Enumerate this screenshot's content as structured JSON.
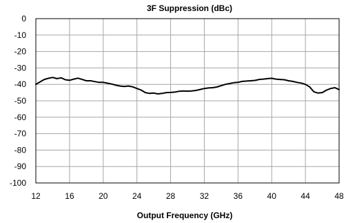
{
  "chart_data": {
    "type": "line",
    "title": "3F Suppression (dBc)",
    "xlabel": "Output Frequency  (GHz)",
    "ylabel": "",
    "xlim": [
      12,
      48
    ],
    "ylim": [
      -100,
      0
    ],
    "x_ticks": [
      "12",
      "16",
      "20",
      "24",
      "28",
      "32",
      "36",
      "40",
      "44",
      "48"
    ],
    "y_ticks": [
      "0",
      "-10",
      "-20",
      "-30",
      "-40",
      "-50",
      "-60",
      "-70",
      "-80",
      "-90",
      "-100"
    ],
    "x_tick_values": [
      12,
      16,
      20,
      24,
      28,
      32,
      36,
      40,
      44,
      48
    ],
    "y_tick_values": [
      0,
      -10,
      -20,
      -30,
      -40,
      -50,
      -60,
      -70,
      -80,
      -90,
      -100
    ],
    "grid": true,
    "legend": "none",
    "line_color": "#000000",
    "series": [
      {
        "x": [
          12,
          12.5,
          13,
          13.5,
          14,
          14.5,
          15,
          15.5,
          16,
          16.5,
          17,
          17.5,
          18,
          18.5,
          19,
          19.5,
          20,
          20.5,
          21,
          21.5,
          22,
          22.5,
          23,
          23.5,
          24,
          24.5,
          25,
          25.5,
          26,
          26.5,
          27,
          27.5,
          28,
          28.5,
          29,
          29.5,
          30,
          30.5,
          31,
          31.5,
          32,
          32.5,
          33,
          33.5,
          34,
          34.5,
          35,
          35.5,
          36,
          36.5,
          37,
          37.5,
          38,
          38.5,
          39,
          39.5,
          40,
          40.5,
          41,
          41.5,
          42,
          42.5,
          43,
          43.5,
          44,
          44.5,
          45,
          45.5,
          46,
          46.5,
          47,
          47.5,
          48
        ],
        "values": [
          -40,
          -38.5,
          -37,
          -36.3,
          -35.8,
          -36.5,
          -36,
          -37.2,
          -37.5,
          -36.8,
          -36.2,
          -37,
          -37.8,
          -37.8,
          -38.3,
          -38.8,
          -38.8,
          -39.3,
          -39.8,
          -40.5,
          -41,
          -41.3,
          -41,
          -41.5,
          -42.5,
          -43.5,
          -45,
          -45.5,
          -45.3,
          -45.8,
          -45.5,
          -45,
          -44.9,
          -44.7,
          -44.2,
          -44,
          -44.1,
          -44,
          -43.7,
          -43.1,
          -42.5,
          -42.2,
          -42,
          -41.6,
          -40.8,
          -40,
          -39.5,
          -39,
          -38.8,
          -38.2,
          -38,
          -37.8,
          -37.6,
          -37,
          -36.8,
          -36.5,
          -36.3,
          -36.8,
          -37,
          -37.2,
          -37.8,
          -38.2,
          -38.8,
          -39.2,
          -40,
          -41.5,
          -44.5,
          -45.3,
          -45,
          -43.5,
          -42.5,
          -42,
          -43.2
        ]
      }
    ]
  }
}
